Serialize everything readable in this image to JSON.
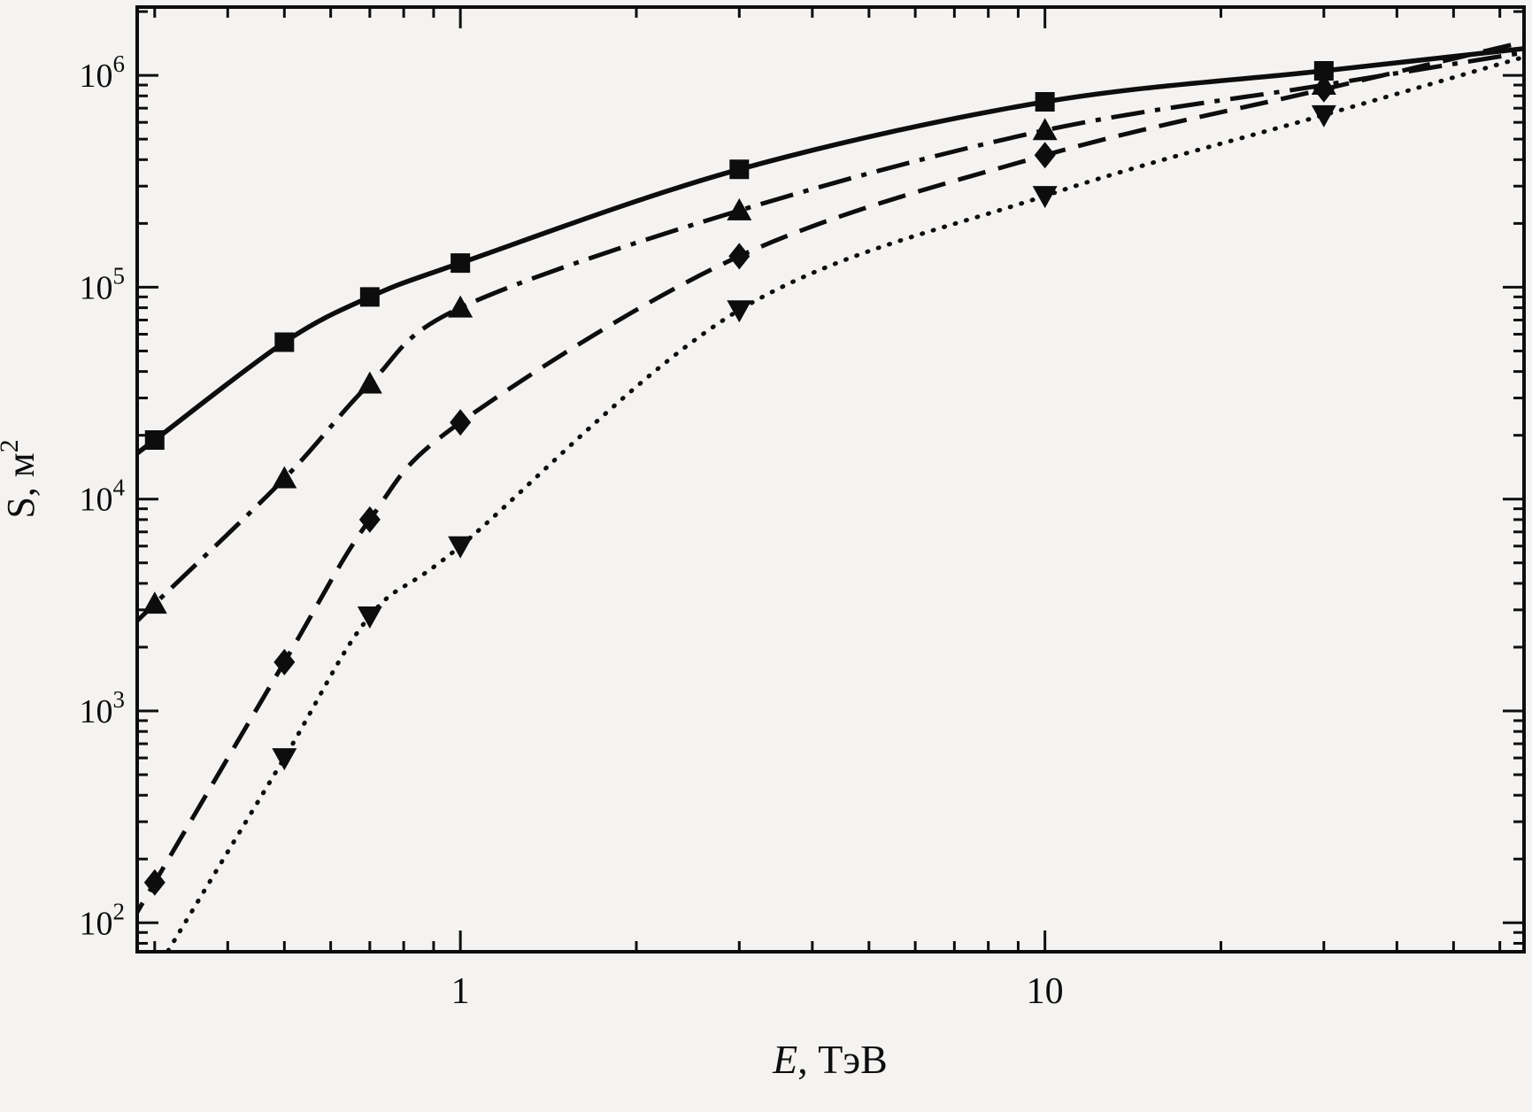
{
  "chart_data": {
    "type": "line",
    "title": "",
    "xlabel": "E, ТэВ",
    "xlabel_italic": "E",
    "xlabel_rest": ", ТэВ",
    "ylabel": "S, м²",
    "ylabel_main": "S, м",
    "ylabel_sup": "2",
    "x_scale": "log",
    "y_scale": "log",
    "xlim": [
      0.28,
      66
    ],
    "ylim": [
      73,
      2100000
    ],
    "grid": false,
    "legend": "none",
    "x_ticks": [
      {
        "value": 1,
        "label": "1"
      },
      {
        "value": 10,
        "label": "10"
      }
    ],
    "y_ticks": [
      {
        "value": 100,
        "mantissa": "10",
        "exp": "2"
      },
      {
        "value": 1000,
        "mantissa": "10",
        "exp": "3"
      },
      {
        "value": 10000,
        "mantissa": "10",
        "exp": "4"
      },
      {
        "value": 100000,
        "mantissa": "10",
        "exp": "5"
      },
      {
        "value": 1000000,
        "mantissa": "10",
        "exp": "6"
      }
    ],
    "series": [
      {
        "name": "solid-squares",
        "line": "solid",
        "marker": "square",
        "x": [
          0.3,
          0.5,
          0.7,
          1,
          3,
          10,
          30
        ],
        "y": [
          19000,
          55000,
          90000,
          130000,
          360000,
          750000,
          1050000
        ]
      },
      {
        "name": "dashdot-triangles-up",
        "line": "dashdot",
        "marker": "triangle-up",
        "x": [
          0.3,
          0.5,
          0.7,
          1,
          3,
          10,
          30
        ],
        "y": [
          3200,
          12500,
          35000,
          80000,
          230000,
          550000,
          900000
        ]
      },
      {
        "name": "dashed-diamonds",
        "line": "dashed",
        "marker": "diamond",
        "x": [
          0.3,
          0.5,
          0.7,
          1,
          3,
          10,
          30
        ],
        "y": [
          155,
          1700,
          8000,
          23000,
          140000,
          420000,
          860000
        ]
      },
      {
        "name": "dotted-triangles-down",
        "line": "dotted",
        "marker": "triangle-down",
        "x": [
          0.5,
          0.7,
          1,
          3,
          10,
          30
        ],
        "y": [
          600,
          2800,
          6000,
          78000,
          270000,
          650000
        ]
      }
    ],
    "colors": {
      "foreground": "#0d0d0d",
      "background": "#f4f3f1"
    }
  }
}
